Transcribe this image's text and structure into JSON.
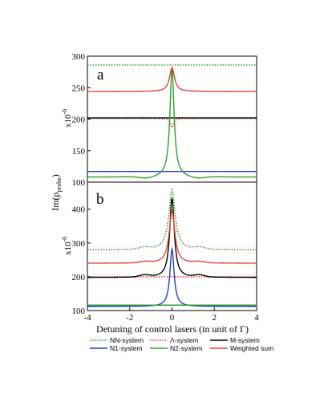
{
  "ylabel": "Im(ρ",
  "ylabel_sub": "probe",
  "ylabel_close": ")",
  "xlabel": "Detuning of control lasers (in unit of Γ)",
  "chart_data": [
    {
      "type": "line",
      "panel": "a",
      "scale_label": "x10",
      "scale_exp": "-6",
      "xlim": [
        -4,
        4
      ],
      "ylim": [
        100,
        300
      ],
      "xticks": [
        -4,
        -2,
        0,
        2,
        4
      ],
      "yticks": [
        100,
        150,
        200,
        250,
        300
      ],
      "series": [
        {
          "name": "NN-system",
          "color": "#2ca02c",
          "style": "dotted",
          "kind": "const",
          "base": 286
        },
        {
          "name": "Λ-system",
          "color": "#e8403a",
          "style": "dotted",
          "kind": "dip",
          "base": 201,
          "amp": -14,
          "width": 0.08
        },
        {
          "name": "M-system",
          "color": "#000000",
          "style": "solid",
          "kind": "const",
          "base": 202
        },
        {
          "name": "N1-system",
          "color": "#1f3fbf",
          "style": "solid",
          "kind": "const",
          "base": 117
        },
        {
          "name": "N2-system",
          "color": "#2ca02c",
          "style": "solid",
          "kind": "peak",
          "base": 108,
          "amp": 171,
          "width": 0.12,
          "wing": 1.2,
          "wingdip": -3
        },
        {
          "name": "Weighted sum",
          "color": "#e8403a",
          "style": "solid",
          "kind": "peak",
          "base": 244,
          "amp": 38,
          "width": 0.14
        }
      ]
    },
    {
      "type": "line",
      "panel": "b",
      "scale_label": "x10",
      "scale_exp": "-6",
      "xlim": [
        -4,
        4
      ],
      "ylim": [
        100,
        480
      ],
      "xticks": [
        -4,
        -2,
        0,
        2,
        4
      ],
      "yticks": [
        100,
        200,
        300,
        400
      ],
      "series": [
        {
          "name": "NN-system",
          "color": "#2ca02c",
          "style": "dotted",
          "kind": "peak",
          "base": 280,
          "amp": 178,
          "width": 0.18,
          "bump": 6
        },
        {
          "name": "Λ-system",
          "color": "#e8403a",
          "style": "dotted",
          "kind": "const",
          "base": 200
        },
        {
          "name": "M-system",
          "color": "#000000",
          "style": "solid",
          "kind": "peak",
          "base": 198,
          "amp": 235,
          "width": 0.13,
          "bump": 6
        },
        {
          "name": "N1-system",
          "color": "#1f3fbf",
          "style": "solid",
          "kind": "peak",
          "base": 112,
          "amp": 170,
          "width": 0.12
        },
        {
          "name": "N2-system",
          "color": "#2ca02c",
          "style": "solid",
          "kind": "const",
          "base": 116
        },
        {
          "name": "Weighted sum",
          "color": "#e8403a",
          "style": "solid",
          "kind": "peak",
          "base": 240,
          "amp": 155,
          "width": 0.16,
          "bump": 4
        }
      ]
    }
  ],
  "legend": [
    {
      "label": "NN-system",
      "color": "#2ca02c",
      "style": "dotted"
    },
    {
      "label": "Λ-system",
      "color": "#e8403a",
      "style": "dotted"
    },
    {
      "label": "M-system",
      "color": "#000000",
      "style": "solid"
    },
    {
      "label": "N1-system",
      "color": "#1f3fbf",
      "style": "solid"
    },
    {
      "label": "N2-system",
      "color": "#2ca02c",
      "style": "solid"
    },
    {
      "label": "Weighted sum",
      "color": "#e8403a",
      "style": "solid"
    }
  ]
}
